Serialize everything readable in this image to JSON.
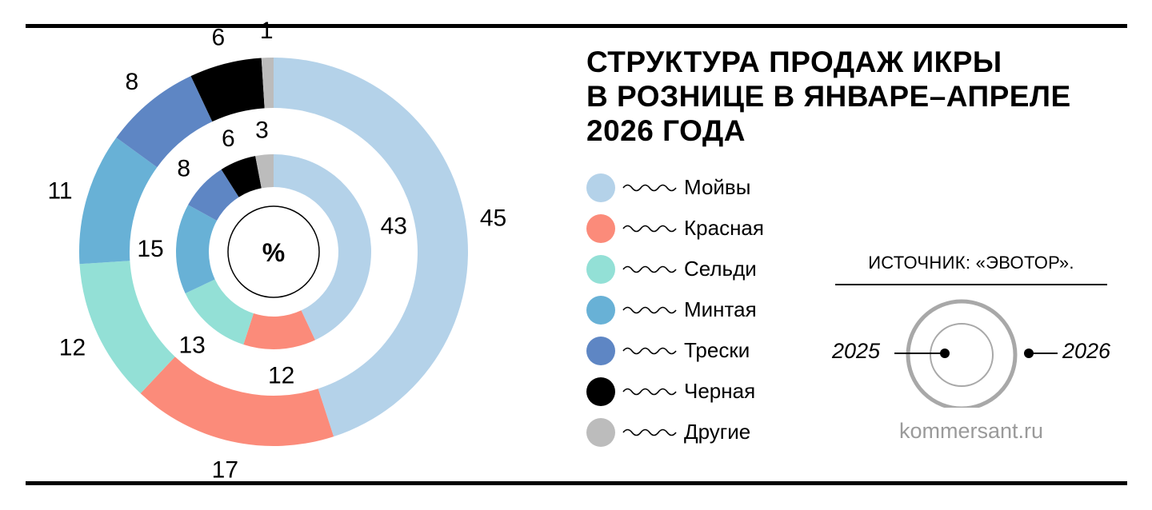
{
  "chart_data": {
    "type": "pie",
    "title_lines": [
      "СТРУКТУРА ПРОДАЖ ИКРЫ",
      "В РОЗНИЦЕ В ЯНВАРЕ–АПРЕЛЕ",
      "2026 ГОДА"
    ],
    "center_label": "%",
    "categories": [
      "Мойвы",
      "Красная",
      "Сельди",
      "Минтая",
      "Трески",
      "Черная",
      "Другие"
    ],
    "colors": [
      "#b4d2e9",
      "#fb8b7a",
      "#93e0d6",
      "#68b1d6",
      "#5e86c4",
      "#000000",
      "#bcbcbc"
    ],
    "series": [
      {
        "name": "2026",
        "ring": "outer",
        "values": [
          45,
          17,
          12,
          11,
          8,
          6,
          1
        ]
      },
      {
        "name": "2025",
        "ring": "inner",
        "values": [
          43,
          12,
          13,
          15,
          8,
          6,
          3
        ]
      }
    ],
    "legend_position": "right"
  },
  "source": "ИСТОЧНИК: «ЭВОТОР».",
  "key": {
    "left_label": "2025",
    "right_label": "2026"
  },
  "credit": "kommersant.ru"
}
